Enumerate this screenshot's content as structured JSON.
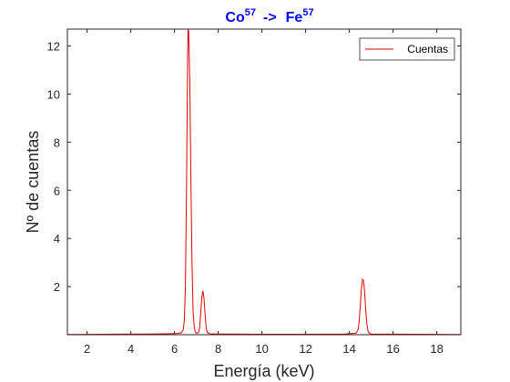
{
  "colors": {
    "title": "#0000ff",
    "series": "#e00000",
    "axes": "#262626",
    "background": "#ffffff"
  },
  "chart_data": {
    "type": "line",
    "title": {
      "base1": "Co",
      "sup1": "57",
      "arrow": "->",
      "base2": "Fe",
      "sup2": "57"
    },
    "xlabel": "Energía (keV)",
    "ylabel": "Nº de cuentas",
    "xlim": [
      1.1,
      19.1
    ],
    "ylim": [
      0,
      12.7
    ],
    "xticks": [
      2,
      4,
      6,
      8,
      10,
      12,
      14,
      16,
      18
    ],
    "yticks": [
      2,
      4,
      6,
      8,
      10,
      12
    ],
    "grid": false,
    "legend_position": "top-right",
    "series": [
      {
        "name": "Cuentas",
        "x": [
          1.1,
          3.0,
          4.8,
          5.7,
          6.1,
          6.3,
          6.4,
          6.45,
          6.5,
          6.55,
          6.6,
          6.62,
          6.65,
          6.7,
          6.75,
          6.8,
          6.85,
          6.9,
          6.95,
          7.0,
          7.1,
          7.15,
          7.2,
          7.25,
          7.3,
          7.35,
          7.4,
          7.45,
          7.5,
          7.6,
          8.0,
          10.0,
          12.0,
          13.8,
          14.3,
          14.4,
          14.45,
          14.5,
          14.55,
          14.6,
          14.65,
          14.7,
          14.75,
          14.8,
          14.85,
          14.9,
          15.0,
          17.0,
          19.1
        ],
        "y": [
          0.01,
          0.02,
          0.03,
          0.04,
          0.05,
          0.07,
          0.2,
          0.6,
          2.0,
          6.0,
          11.5,
          12.7,
          12.6,
          10.5,
          6.5,
          3.0,
          1.0,
          0.35,
          0.12,
          0.06,
          0.08,
          0.3,
          0.9,
          1.55,
          1.82,
          1.5,
          0.85,
          0.3,
          0.1,
          0.04,
          0.03,
          0.02,
          0.02,
          0.03,
          0.06,
          0.2,
          0.55,
          1.2,
          1.9,
          2.3,
          2.25,
          1.75,
          1.0,
          0.45,
          0.17,
          0.07,
          0.03,
          0.02,
          0.01
        ]
      }
    ]
  }
}
